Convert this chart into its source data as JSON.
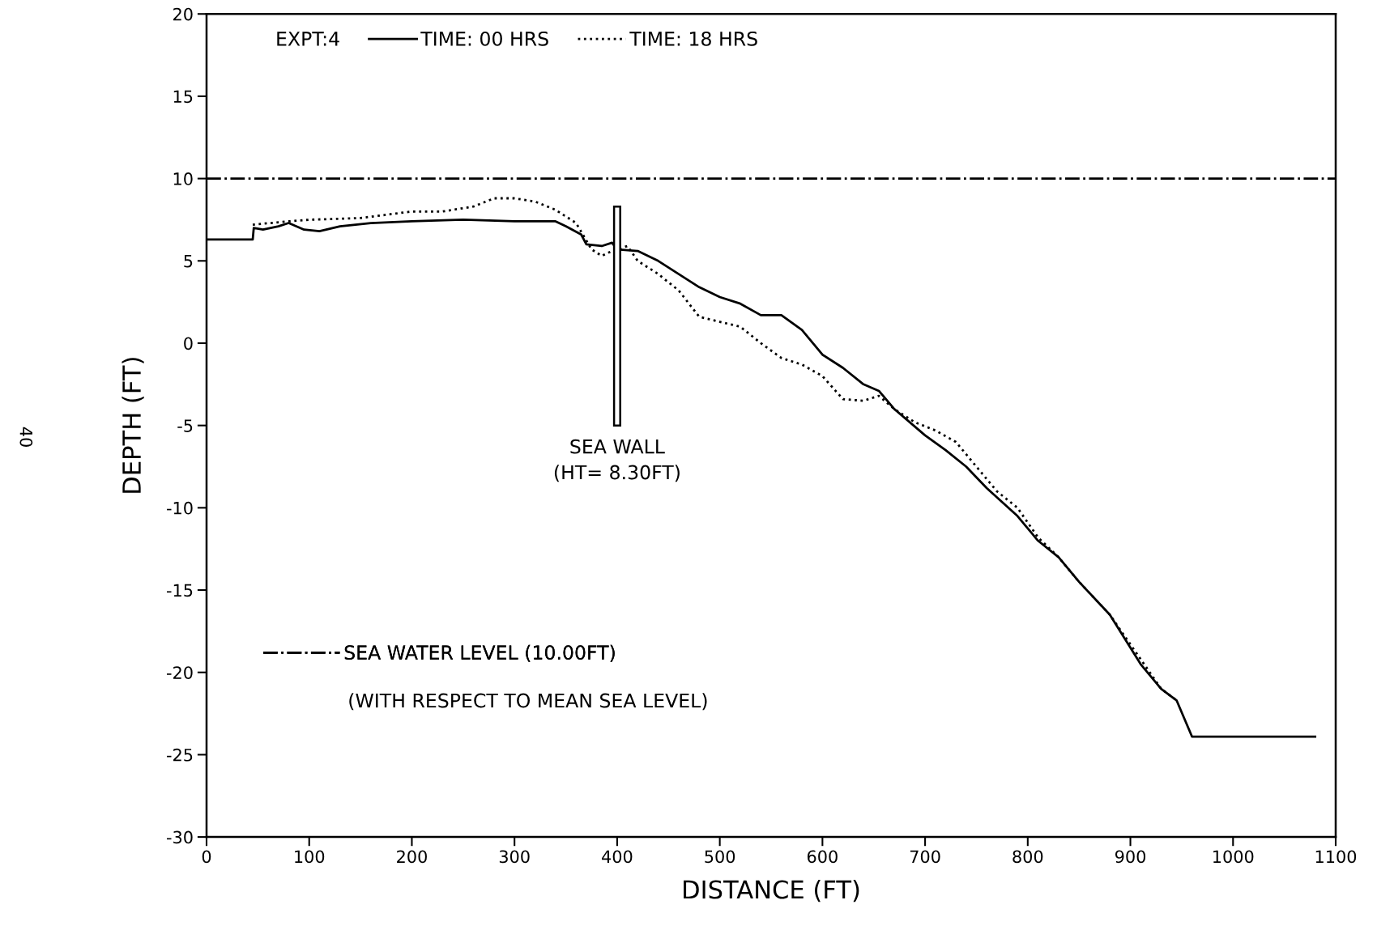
{
  "chart_data": {
    "type": "line",
    "xlabel": "DISTANCE (FT)",
    "ylabel": "DEPTH (FT)",
    "legend_title": "EXPT:4",
    "series": [
      {
        "name": "TIME: 00 HRS",
        "color": "#000000",
        "line_style": "solid",
        "x": [
          0,
          45,
          46,
          55,
          70,
          80,
          95,
          110,
          130,
          160,
          200,
          250,
          300,
          340,
          350,
          365,
          370,
          385,
          395,
          400,
          420,
          440,
          460,
          480,
          500,
          520,
          540,
          560,
          580,
          600,
          620,
          640,
          655,
          670,
          700,
          720,
          740,
          760,
          790,
          810,
          830,
          850,
          880,
          910,
          930,
          945,
          960,
          1080
        ],
        "values": [
          6.3,
          6.3,
          7.0,
          6.9,
          7.1,
          7.3,
          6.9,
          6.8,
          7.1,
          7.3,
          7.4,
          7.5,
          7.4,
          7.4,
          7.1,
          6.6,
          6.0,
          5.9,
          6.1,
          5.7,
          5.6,
          5.0,
          4.2,
          3.4,
          2.8,
          2.4,
          1.7,
          1.7,
          0.8,
          -0.7,
          -1.5,
          -2.5,
          -2.9,
          -4.0,
          -5.6,
          -6.5,
          -7.5,
          -8.8,
          -10.5,
          -12.0,
          -13.0,
          -14.5,
          -16.5,
          -19.5,
          -21.0,
          -21.7,
          -23.9,
          -23.9
        ]
      },
      {
        "name": "TIME: 18 HRS",
        "color": "#000000",
        "line_style": "dotted",
        "x": [
          45,
          80,
          100,
          150,
          200,
          230,
          260,
          280,
          300,
          320,
          340,
          360,
          375,
          385,
          395,
          410,
          420,
          440,
          460,
          480,
          500,
          520,
          540,
          560,
          580,
          600,
          620,
          640,
          655,
          670,
          690,
          710,
          730,
          750,
          770,
          790,
          810,
          830,
          850,
          880,
          910,
          930,
          945
        ],
        "values": [
          7.2,
          7.4,
          7.5,
          7.6,
          8.0,
          8.0,
          8.3,
          8.8,
          8.8,
          8.6,
          8.1,
          7.3,
          5.7,
          5.3,
          5.6,
          5.9,
          5.0,
          4.2,
          3.2,
          1.6,
          1.3,
          1.0,
          0.0,
          -0.9,
          -1.3,
          -2.0,
          -3.4,
          -3.5,
          -3.2,
          -4.0,
          -4.8,
          -5.3,
          -6.0,
          -7.5,
          -9.0,
          -10.0,
          -11.8,
          -13.0,
          -14.5,
          -16.5,
          -19.2,
          -21.0,
          -21.7
        ]
      },
      {
        "type": "bar",
        "color": "#ffffff",
        "x": [
          400
        ],
        "base": [
          -5
        ],
        "values": [
          13.3
        ]
      }
    ],
    "ref_lines": [
      {
        "axis": "y",
        "value": 10,
        "label": "SEA WATER LEVEL (10.00FT)",
        "line_style": "dashdot",
        "color": "#000000"
      }
    ],
    "annotations": [
      {
        "text": "SEA WALL\n(HT= 8.30FT)",
        "x": 400,
        "y": -5
      },
      "(WITH RESPECT TO MEAN SEA LEVEL)",
      "40"
    ],
    "xlim": [
      0,
      1100
    ],
    "ylim": [
      -30,
      20
    ],
    "xticks": [
      0,
      100,
      200,
      300,
      400,
      500,
      600,
      700,
      800,
      900,
      1000,
      1100
    ],
    "yticks": [
      -30,
      -25,
      -20,
      -15,
      -10,
      -5,
      0,
      5,
      10,
      15,
      20
    ],
    "grid": false,
    "legend": "top left"
  }
}
